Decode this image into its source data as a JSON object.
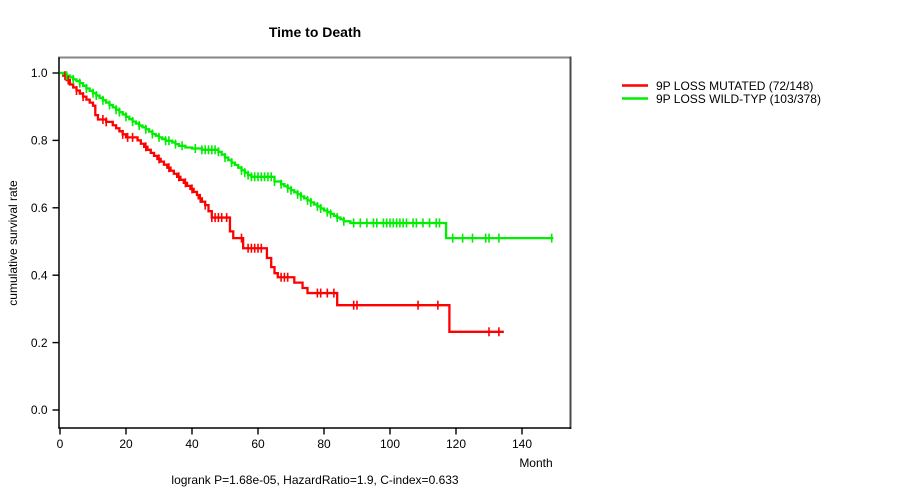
{
  "window": {
    "background": "#ffffff"
  },
  "chart_data": {
    "type": "line",
    "subtype": "kaplan-meier-step-survival",
    "title": "Time to Death",
    "xlabel": "Month",
    "ylabel": "cumulative survival rate",
    "footer": "logrank P=1.68e-05, HazardRatio=1.9, C-index=0.633",
    "x_ticks": [
      0,
      20,
      40,
      60,
      80,
      100,
      120,
      140
    ],
    "y_ticks": [
      "0.0",
      "0.2",
      "0.4",
      "0.6",
      "0.8",
      "1.0"
    ],
    "xlim": [
      0,
      155
    ],
    "ylim": [
      0,
      1.04
    ],
    "grid": false,
    "legend_position": "right-outside",
    "axis_colors": {
      "box_top": "#868686",
      "box_right": "#4a4a4a",
      "axis": "#000000"
    },
    "series": [
      {
        "name": "9P LOSS MUTATED (72/148)",
        "color": "#ff0000",
        "end_month": 134.5,
        "steps": [
          [
            0,
            1.0
          ],
          [
            1,
            0.992
          ],
          [
            2,
            0.979
          ],
          [
            3,
            0.966
          ],
          [
            4,
            0.957
          ],
          [
            5,
            0.948
          ],
          [
            6,
            0.939
          ],
          [
            7,
            0.93
          ],
          [
            8,
            0.921
          ],
          [
            9,
            0.912
          ],
          [
            10,
            0.903
          ],
          [
            10.7,
            0.875
          ],
          [
            11.5,
            0.862
          ],
          [
            14,
            0.855
          ],
          [
            16,
            0.845
          ],
          [
            17,
            0.836
          ],
          [
            18,
            0.827
          ],
          [
            19,
            0.818
          ],
          [
            20,
            0.809
          ],
          [
            23.5,
            0.8
          ],
          [
            24.5,
            0.79
          ],
          [
            25.5,
            0.781
          ],
          [
            26.5,
            0.772
          ],
          [
            27.5,
            0.763
          ],
          [
            28.5,
            0.754
          ],
          [
            29.5,
            0.745
          ],
          [
            30.5,
            0.737
          ],
          [
            31.5,
            0.728
          ],
          [
            32.5,
            0.719
          ],
          [
            33.5,
            0.71
          ],
          [
            34.5,
            0.701
          ],
          [
            35.5,
            0.692
          ],
          [
            36.5,
            0.683
          ],
          [
            37.5,
            0.674
          ],
          [
            38.5,
            0.665
          ],
          [
            39.5,
            0.656
          ],
          [
            40.5,
            0.647
          ],
          [
            41.5,
            0.638
          ],
          [
            42,
            0.628
          ],
          [
            43,
            0.618
          ],
          [
            44,
            0.608
          ],
          [
            45,
            0.59
          ],
          [
            46,
            0.571
          ],
          [
            51.5,
            0.53
          ],
          [
            52.5,
            0.51
          ],
          [
            55.5,
            0.48
          ],
          [
            62.7,
            0.451
          ],
          [
            64,
            0.424
          ],
          [
            65,
            0.406
          ],
          [
            66,
            0.394
          ],
          [
            71,
            0.378
          ],
          [
            73.5,
            0.362
          ],
          [
            75,
            0.347
          ],
          [
            84,
            0.311
          ],
          [
            118,
            0.232
          ]
        ],
        "censors": [
          1.5,
          2.5,
          5,
          7,
          13,
          14,
          19,
          20.5,
          22,
          26,
          30,
          33,
          36,
          38,
          40,
          42.5,
          44,
          46,
          47,
          48,
          49,
          50.5,
          55,
          57,
          58,
          59,
          60,
          61,
          67,
          68,
          69,
          78,
          79,
          81,
          83,
          89,
          90,
          108.5,
          114.5,
          130,
          133
        ]
      },
      {
        "name": "9P LOSS WILD-TYP (103/378)",
        "color": "#00ee00",
        "end_month": 149.5,
        "steps": [
          [
            0,
            1.0
          ],
          [
            1,
            0.997
          ],
          [
            2,
            0.992
          ],
          [
            3,
            0.987
          ],
          [
            4,
            0.981
          ],
          [
            5,
            0.976
          ],
          [
            6,
            0.97
          ],
          [
            7,
            0.962
          ],
          [
            8,
            0.954
          ],
          [
            9,
            0.947
          ],
          [
            10,
            0.94
          ],
          [
            11,
            0.933
          ],
          [
            12,
            0.926
          ],
          [
            13,
            0.919
          ],
          [
            14,
            0.912
          ],
          [
            15,
            0.905
          ],
          [
            16,
            0.898
          ],
          [
            17,
            0.891
          ],
          [
            18,
            0.884
          ],
          [
            19,
            0.877
          ],
          [
            20,
            0.87
          ],
          [
            21,
            0.863
          ],
          [
            22,
            0.856
          ],
          [
            23,
            0.85
          ],
          [
            24,
            0.844
          ],
          [
            25,
            0.839
          ],
          [
            26,
            0.833
          ],
          [
            27,
            0.826
          ],
          [
            28,
            0.819
          ],
          [
            29,
            0.814
          ],
          [
            30,
            0.809
          ],
          [
            31,
            0.804
          ],
          [
            32,
            0.799
          ],
          [
            34,
            0.794
          ],
          [
            35,
            0.789
          ],
          [
            36,
            0.784
          ],
          [
            38,
            0.779
          ],
          [
            40,
            0.776
          ],
          [
            43,
            0.772
          ],
          [
            48,
            0.766
          ],
          [
            49,
            0.758
          ],
          [
            50,
            0.749
          ],
          [
            51,
            0.741
          ],
          [
            52,
            0.734
          ],
          [
            53,
            0.727
          ],
          [
            54,
            0.719
          ],
          [
            55,
            0.711
          ],
          [
            56,
            0.704
          ],
          [
            57,
            0.697
          ],
          [
            58,
            0.692
          ],
          [
            65,
            0.678
          ],
          [
            67,
            0.67
          ],
          [
            68,
            0.664
          ],
          [
            69,
            0.658
          ],
          [
            70,
            0.652
          ],
          [
            71,
            0.646
          ],
          [
            72,
            0.64
          ],
          [
            73,
            0.634
          ],
          [
            74,
            0.628
          ],
          [
            75,
            0.622
          ],
          [
            76,
            0.616
          ],
          [
            77,
            0.61
          ],
          [
            78,
            0.604
          ],
          [
            79,
            0.598
          ],
          [
            80,
            0.592
          ],
          [
            81,
            0.587
          ],
          [
            82,
            0.582
          ],
          [
            83,
            0.576
          ],
          [
            84,
            0.571
          ],
          [
            85,
            0.566
          ],
          [
            86,
            0.56
          ],
          [
            88,
            0.555
          ],
          [
            117,
            0.51
          ]
        ],
        "censors": [
          2,
          4,
          6,
          8,
          10,
          11,
          13,
          15,
          17,
          18,
          20,
          22,
          24,
          26,
          28,
          30,
          32,
          33,
          35,
          37,
          41,
          43,
          44,
          45,
          46,
          47,
          48,
          50,
          52,
          55,
          56,
          57,
          58,
          59,
          60,
          61,
          62,
          63,
          64,
          65,
          67,
          69,
          70,
          72,
          73,
          75,
          76,
          78,
          79,
          81,
          82,
          84,
          86,
          89,
          91,
          93,
          95,
          96,
          98,
          99,
          100,
          101,
          102,
          103,
          104,
          105,
          107,
          108,
          110,
          112,
          114,
          115,
          119,
          122,
          125,
          129,
          130,
          133,
          149
        ]
      }
    ]
  }
}
